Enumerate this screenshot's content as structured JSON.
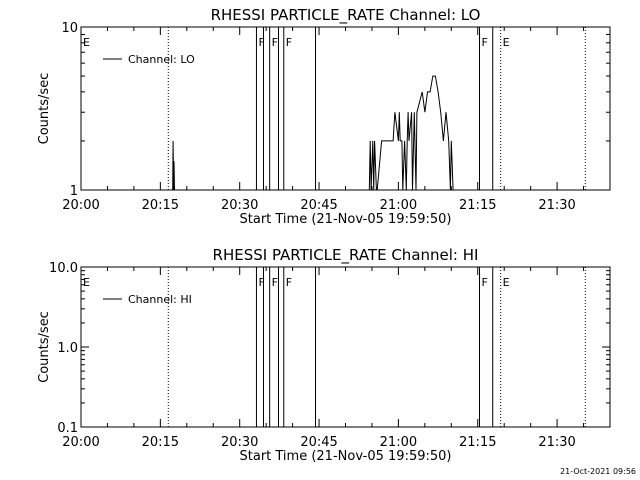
{
  "footer": {
    "timestamp": "21-Oct-2021 09:56"
  },
  "chart_data": [
    {
      "type": "line",
      "title": "RHESSI PARTICLE_RATE Channel: LO",
      "xlabel": "Start Time (21-Nov-05 19:59:50)",
      "ylabel": "Counts/sec",
      "yscale": "log",
      "ylim": [
        1,
        10
      ],
      "y_ticks": [
        1,
        10
      ],
      "y_tick_labels": [
        "1",
        "10"
      ],
      "xlim": [
        "20:00",
        "21:40"
      ],
      "x_ticks": [
        "20:00",
        "20:15",
        "20:30",
        "20:45",
        "21:00",
        "21:15",
        "21:30"
      ],
      "legend": {
        "position": "top-left",
        "entries": [
          "Channel: LO"
        ]
      },
      "grid": false,
      "series": [
        {
          "name": "Channel: LO",
          "x": [
            "20:17:20",
            "20:17:25",
            "20:17:30",
            "20:17:35",
            "20:17:40",
            "20:54:30",
            "20:54:40",
            "20:54:50",
            "20:55:10",
            "20:55:20",
            "20:55:30",
            "20:55:50",
            "20:56:00",
            "20:56:50",
            "20:57:00",
            "20:58:00",
            "20:59:00",
            "20:59:20",
            "21:00:00",
            "21:00:10",
            "21:00:20",
            "21:00:40",
            "21:00:50",
            "21:01:10",
            "21:01:30",
            "21:01:40",
            "21:01:50",
            "21:02:00",
            "21:02:30",
            "21:02:40",
            "21:03:00",
            "21:03:20",
            "21:03:30",
            "21:04:30",
            "21:05:00",
            "21:05:30",
            "21:06:00",
            "21:06:30",
            "21:07:00",
            "21:07:30",
            "21:08:00",
            "21:08:30",
            "21:09:00",
            "21:09:30",
            "21:09:50",
            "21:10:00",
            "21:10:20",
            "21:10:30"
          ],
          "y": [
            1,
            2,
            1,
            1.5,
            1,
            1,
            2,
            1,
            2,
            1,
            2,
            1,
            1,
            2,
            2,
            2,
            2,
            3,
            2,
            3,
            2,
            2,
            1,
            2,
            1,
            2,
            3,
            2,
            3,
            1,
            3,
            1,
            3,
            4,
            3,
            4,
            4,
            5,
            5,
            4,
            3,
            2,
            3,
            2,
            1,
            2,
            1,
            1
          ]
        }
      ],
      "markers": [
        {
          "label": "E",
          "time": "20:00:00",
          "style": "dotted"
        },
        {
          "label": "",
          "time": "20:16:30",
          "style": "dotted"
        },
        {
          "label": "F",
          "time": "20:33:10",
          "style": "solid"
        },
        {
          "label": "",
          "time": "20:34:30",
          "style": "solid"
        },
        {
          "label": "F",
          "time": "20:35:40",
          "style": "solid"
        },
        {
          "label": "",
          "time": "20:37:20",
          "style": "solid"
        },
        {
          "label": "F",
          "time": "20:38:20",
          "style": "solid"
        },
        {
          "label": "",
          "time": "20:44:20",
          "style": "solid"
        },
        {
          "label": "F",
          "time": "21:15:20",
          "style": "solid"
        },
        {
          "label": "",
          "time": "21:17:50",
          "style": "solid"
        },
        {
          "label": "E",
          "time": "21:19:20",
          "style": "dotted"
        },
        {
          "label": "",
          "time": "21:35:20",
          "style": "dotted"
        }
      ]
    },
    {
      "type": "line",
      "title": "RHESSI PARTICLE_RATE Channel: HI",
      "xlabel": "Start Time (21-Nov-05 19:59:50)",
      "ylabel": "Counts/sec",
      "yscale": "log",
      "ylim": [
        0.1,
        10
      ],
      "y_ticks": [
        0.1,
        1,
        10
      ],
      "y_tick_labels": [
        "0.1",
        "1.0",
        "10.0"
      ],
      "xlim": [
        "20:00",
        "21:40"
      ],
      "x_ticks": [
        "20:00",
        "20:15",
        "20:30",
        "20:45",
        "21:00",
        "21:15",
        "21:30"
      ],
      "legend": {
        "position": "top-left",
        "entries": [
          "Channel: HI"
        ]
      },
      "grid": false,
      "series": [
        {
          "name": "Channel: HI",
          "x": [],
          "y": []
        }
      ],
      "markers": [
        {
          "label": "E",
          "time": "20:00:00",
          "style": "dotted"
        },
        {
          "label": "",
          "time": "20:16:30",
          "style": "dotted"
        },
        {
          "label": "F",
          "time": "20:33:10",
          "style": "solid"
        },
        {
          "label": "",
          "time": "20:34:30",
          "style": "solid"
        },
        {
          "label": "F",
          "time": "20:35:40",
          "style": "solid"
        },
        {
          "label": "",
          "time": "20:37:20",
          "style": "solid"
        },
        {
          "label": "F",
          "time": "20:38:20",
          "style": "solid"
        },
        {
          "label": "",
          "time": "20:44:20",
          "style": "solid"
        },
        {
          "label": "F",
          "time": "21:15:20",
          "style": "solid"
        },
        {
          "label": "",
          "time": "21:17:50",
          "style": "solid"
        },
        {
          "label": "E",
          "time": "21:19:20",
          "style": "dotted"
        },
        {
          "label": "",
          "time": "21:35:20",
          "style": "dotted"
        }
      ]
    }
  ]
}
